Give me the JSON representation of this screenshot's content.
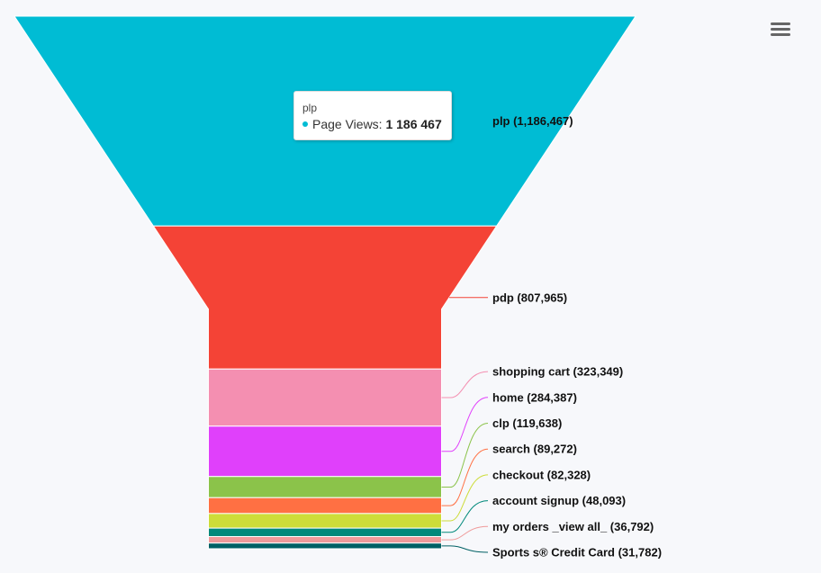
{
  "menu": {
    "icon": "hamburger-icon"
  },
  "tooltip": {
    "title": "plp",
    "series_label": "Page Views:",
    "value": "1 186 467",
    "color": "#00bcd4"
  },
  "chart_data": {
    "type": "funnel",
    "series": [
      {
        "name": "Page Views",
        "points": [
          {
            "name": "plp",
            "value": 1186467,
            "label": "plp (1,186,467)",
            "color": "#00bcd4"
          },
          {
            "name": "pdp",
            "value": 807965,
            "label": "pdp (807,965)",
            "color": "#f44336"
          },
          {
            "name": "shopping cart",
            "value": 323349,
            "label": "shopping cart (323,349)",
            "color": "#f48fb1"
          },
          {
            "name": "home",
            "value": 284387,
            "label": "home (284,387)",
            "color": "#e040fb"
          },
          {
            "name": "clp",
            "value": 119638,
            "label": "clp (119,638)",
            "color": "#8bc34a"
          },
          {
            "name": "search",
            "value": 89272,
            "label": "search (89,272)",
            "color": "#ff7043"
          },
          {
            "name": "checkout",
            "value": 82328,
            "label": "checkout (82,328)",
            "color": "#cddc39"
          },
          {
            "name": "account signup",
            "value": 48093,
            "label": "account signup (48,093)",
            "color": "#00897b"
          },
          {
            "name": "my orders _view all_",
            "value": 36792,
            "label": "my orders _view all_ (36,792)",
            "color": "#ef9a9a"
          },
          {
            "name": "Sports s® Credit Card",
            "value": 31782,
            "label": "Sports s® Credit Card (31,782)",
            "color": "#006064"
          }
        ]
      }
    ]
  }
}
